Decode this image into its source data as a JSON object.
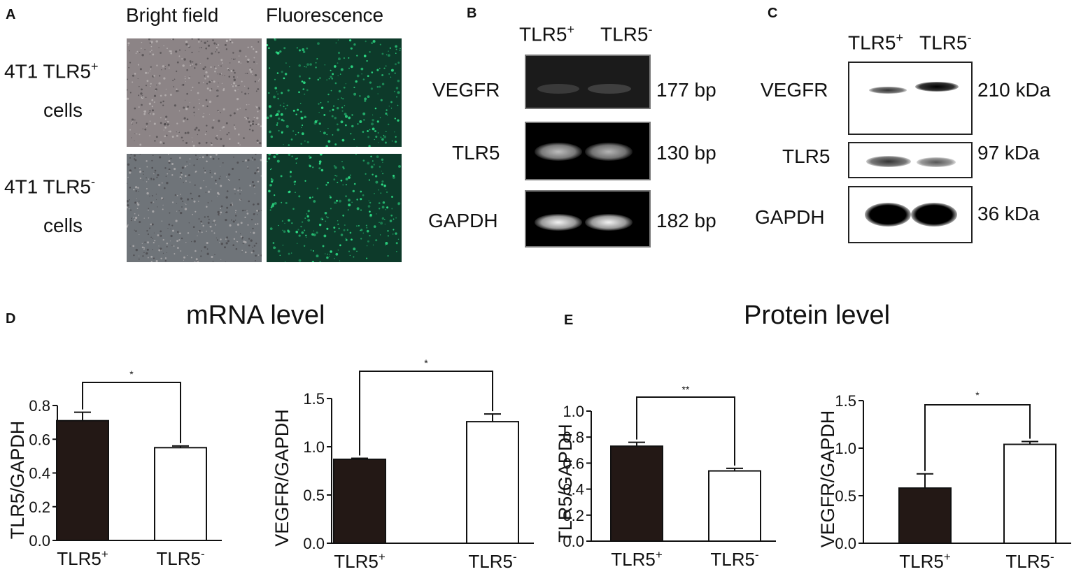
{
  "panels": {
    "A": {
      "label": "A",
      "col_bright": "Bright field",
      "col_fluor": "Fluorescence",
      "row1_line1": "4T1 TLR5",
      "row1_sup": "+",
      "row1_line2": "cells",
      "row2_line1": "4T1 TLR5",
      "row2_sup": "-",
      "row2_line2": "cells"
    },
    "B": {
      "label": "B",
      "lane1": "TLR5",
      "lane1_sup": "+",
      "lane2": "TLR5",
      "lane2_sup": "-",
      "rows": [
        {
          "name": "VEGFR",
          "size": "177 bp"
        },
        {
          "name": "TLR5",
          "size": "130 bp"
        },
        {
          "name": "GAPDH",
          "size": "182 bp"
        }
      ]
    },
    "C": {
      "label": "C",
      "lane1": "TLR5",
      "lane1_sup": "+",
      "lane2": "TLR5",
      "lane2_sup": "-",
      "rows": [
        {
          "name": "VEGFR",
          "size": "210 kDa"
        },
        {
          "name": "TLR5",
          "size": "97 kDa"
        },
        {
          "name": "GAPDH",
          "size": "36 kDa"
        }
      ]
    },
    "D": {
      "label": "D",
      "title": "mRNA level"
    },
    "E": {
      "label": "E",
      "title": "Protein level"
    }
  },
  "colors": {
    "bar_dark": "#231815",
    "bar_light": "#ffffff",
    "fluor_bg": "#0d3a2a",
    "fluor_dot": "#2ee68a",
    "bright_top": "#8c8486",
    "bright_bottom": "#6f7479"
  },
  "chart_data": [
    {
      "type": "bar",
      "panel": "D",
      "categories": [
        "TLR5+",
        "TLR5-"
      ],
      "values": [
        0.71,
        0.55
      ],
      "errors": [
        0.05,
        0.01
      ],
      "ylabel": "TLR5/GAPDH",
      "ylim": [
        0,
        0.8
      ],
      "yticks": [
        "0.0",
        "0.2",
        "0.4",
        "0.6",
        "0.8"
      ],
      "significance": "*"
    },
    {
      "type": "bar",
      "panel": "D",
      "categories": [
        "TLR5+",
        "TLR5-"
      ],
      "values": [
        0.87,
        1.26
      ],
      "errors": [
        0.01,
        0.08
      ],
      "ylabel": "VEGFR/GAPDH",
      "ylim": [
        0,
        1.5
      ],
      "yticks": [
        "0.0",
        "0.5",
        "1.0",
        "1.5"
      ],
      "significance": "*"
    },
    {
      "type": "bar",
      "panel": "E",
      "categories": [
        "TLR5+",
        "TLR5-"
      ],
      "values": [
        0.73,
        0.54
      ],
      "errors": [
        0.03,
        0.02
      ],
      "ylabel": "TLR5/GAPDH",
      "ylim": [
        0,
        1.0
      ],
      "yticks": [
        "0.0",
        "0.2",
        "0.4",
        "0.6",
        "0.8",
        "1.0"
      ],
      "significance": "**"
    },
    {
      "type": "bar",
      "panel": "E",
      "categories": [
        "TLR5+",
        "TLR5-"
      ],
      "values": [
        0.58,
        1.04
      ],
      "errors": [
        0.15,
        0.03
      ],
      "ylabel": "VEGFR/GAPDH",
      "ylim": [
        0,
        1.5
      ],
      "yticks": [
        "0.0",
        "0.5",
        "1.0",
        "1.5"
      ],
      "significance": "*"
    }
  ]
}
